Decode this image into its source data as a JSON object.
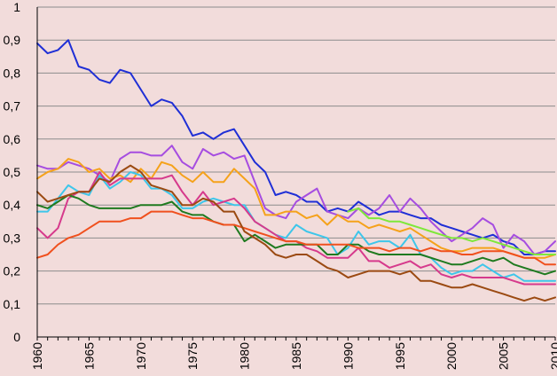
{
  "chart_data": {
    "type": "line",
    "title": "",
    "xlabel": "",
    "ylabel": "",
    "xlim": [
      1960,
      2010
    ],
    "ylim": [
      0,
      1
    ],
    "grid": true,
    "legend": "none",
    "background": "#f2dcdb",
    "x_ticks": [
      "1960",
      "1965",
      "1970",
      "1975",
      "1980",
      "1985",
      "1990",
      "1995",
      "2000",
      "2005",
      "2010"
    ],
    "y_ticks": [
      "0",
      "0,1",
      "0,2",
      "0,3",
      "0,4",
      "0,5",
      "0,6",
      "0,7",
      "0,8",
      "0,9",
      "1"
    ],
    "x": [
      1960,
      1961,
      1962,
      1963,
      1964,
      1965,
      1966,
      1967,
      1968,
      1969,
      1970,
      1971,
      1972,
      1973,
      1974,
      1975,
      1976,
      1977,
      1978,
      1979,
      1980,
      1981,
      1982,
      1983,
      1984,
      1985,
      1986,
      1987,
      1988,
      1989,
      1990,
      1991,
      1992,
      1993,
      1994,
      1995,
      1996,
      1997,
      1998,
      1999,
      2000,
      2001,
      2002,
      2003,
      2004,
      2005,
      2006,
      2007,
      2008,
      2009,
      2010
    ],
    "series": [
      {
        "color": "#1f2fd6",
        "values": [
          0.89,
          0.86,
          0.87,
          0.9,
          0.82,
          0.81,
          0.78,
          0.77,
          0.81,
          0.8,
          0.75,
          0.7,
          0.72,
          0.71,
          0.67,
          0.61,
          0.62,
          0.6,
          0.62,
          0.63,
          0.58,
          0.53,
          0.5,
          0.43,
          0.44,
          0.43,
          0.41,
          0.41,
          0.38,
          0.39,
          0.38,
          0.41,
          0.39,
          0.37,
          0.38,
          0.38,
          0.37,
          0.36,
          0.36,
          0.34,
          0.33,
          0.32,
          0.31,
          0.3,
          0.31,
          0.29,
          0.28,
          0.25,
          0.25,
          0.26,
          0.26
        ]
      },
      {
        "color": "#a64de0",
        "values": [
          0.52,
          0.51,
          0.51,
          0.53,
          0.52,
          0.51,
          0.49,
          0.47,
          0.54,
          0.56,
          0.56,
          0.55,
          0.55,
          0.58,
          0.53,
          0.51,
          0.57,
          0.55,
          0.56,
          0.54,
          0.55,
          0.47,
          0.39,
          0.37,
          0.36,
          0.41,
          0.43,
          0.45,
          0.38,
          0.37,
          0.36,
          0.39,
          0.37,
          0.39,
          0.43,
          0.38,
          0.42,
          0.39,
          0.35,
          0.32,
          0.29,
          0.31,
          0.33,
          0.36,
          0.34,
          0.27,
          0.31,
          0.29,
          0.25,
          0.26,
          0.29
        ]
      },
      {
        "color": "#f5a21b",
        "values": [
          0.48,
          0.5,
          0.51,
          0.54,
          0.53,
          0.5,
          0.51,
          0.48,
          0.49,
          0.47,
          0.51,
          0.48,
          0.53,
          0.52,
          0.49,
          0.47,
          0.5,
          0.47,
          0.47,
          0.51,
          0.48,
          0.45,
          0.37,
          0.37,
          0.38,
          0.38,
          0.36,
          0.37,
          0.34,
          0.37,
          0.35,
          0.35,
          0.33,
          0.34,
          0.33,
          0.32,
          0.33,
          0.31,
          0.29,
          0.27,
          0.26,
          0.26,
          0.27,
          0.27,
          0.27,
          0.26,
          0.25,
          0.24,
          0.24,
          0.24,
          0.25
        ]
      },
      {
        "color": "#3ec6ea",
        "values": [
          0.38,
          0.38,
          0.42,
          0.46,
          0.44,
          0.43,
          0.49,
          0.45,
          0.47,
          0.5,
          0.49,
          0.45,
          0.45,
          0.43,
          0.39,
          0.39,
          0.41,
          0.42,
          0.41,
          0.4,
          0.4,
          0.35,
          0.33,
          0.31,
          0.3,
          0.34,
          0.32,
          0.31,
          0.3,
          0.25,
          0.27,
          0.32,
          0.28,
          0.29,
          0.29,
          0.27,
          0.31,
          0.25,
          0.24,
          0.21,
          0.19,
          0.2,
          0.2,
          0.22,
          0.2,
          0.18,
          0.19,
          0.17,
          0.17,
          0.17,
          0.17
        ]
      },
      {
        "color": "#d63a8c",
        "values": [
          0.33,
          0.3,
          0.33,
          0.42,
          0.44,
          0.44,
          0.5,
          0.46,
          0.48,
          0.48,
          0.48,
          0.48,
          0.48,
          0.49,
          0.44,
          0.4,
          0.44,
          0.4,
          0.41,
          0.42,
          0.39,
          0.35,
          0.33,
          0.31,
          0.29,
          0.29,
          0.27,
          0.26,
          0.24,
          0.24,
          0.24,
          0.27,
          0.23,
          0.23,
          0.21,
          0.22,
          0.23,
          0.21,
          0.22,
          0.19,
          0.18,
          0.19,
          0.18,
          0.18,
          0.18,
          0.18,
          0.17,
          0.16,
          0.16,
          0.16,
          0.16
        ]
      },
      {
        "color": "#7ee83a",
        "values": [
          null,
          null,
          null,
          null,
          null,
          null,
          null,
          null,
          null,
          null,
          null,
          null,
          null,
          null,
          null,
          null,
          null,
          null,
          null,
          null,
          null,
          null,
          null,
          null,
          null,
          null,
          null,
          null,
          null,
          null,
          0.38,
          0.39,
          0.36,
          0.36,
          0.35,
          0.35,
          0.34,
          0.33,
          0.32,
          0.31,
          0.3,
          0.3,
          0.29,
          0.3,
          0.29,
          0.28,
          0.27,
          0.26,
          0.25,
          0.25,
          0.25
        ]
      },
      {
        "color": "#1f7a1f",
        "values": [
          0.4,
          0.39,
          0.41,
          0.43,
          0.42,
          0.4,
          0.39,
          0.39,
          0.39,
          0.39,
          0.4,
          0.4,
          0.4,
          0.41,
          0.38,
          0.37,
          0.37,
          0.35,
          0.34,
          0.34,
          0.29,
          0.31,
          0.29,
          0.27,
          0.28,
          0.28,
          0.28,
          0.28,
          0.25,
          0.25,
          0.28,
          0.28,
          0.26,
          0.25,
          0.25,
          0.25,
          0.25,
          0.25,
          0.24,
          0.23,
          0.22,
          0.22,
          0.23,
          0.24,
          0.23,
          0.24,
          0.22,
          0.21,
          0.2,
          0.19,
          0.2
        ]
      },
      {
        "color": "#f0501e",
        "values": [
          0.24,
          0.25,
          0.28,
          0.3,
          0.31,
          0.33,
          0.35,
          0.35,
          0.35,
          0.36,
          0.36,
          0.38,
          0.38,
          0.38,
          0.37,
          0.36,
          0.36,
          0.35,
          0.34,
          0.34,
          0.33,
          0.32,
          0.31,
          0.3,
          0.29,
          0.29,
          0.28,
          0.28,
          0.28,
          0.28,
          0.28,
          0.27,
          0.27,
          0.27,
          0.26,
          0.27,
          0.27,
          0.26,
          0.27,
          0.26,
          0.26,
          0.25,
          0.25,
          0.26,
          0.26,
          0.26,
          0.25,
          0.24,
          0.24,
          0.22,
          0.22
        ]
      },
      {
        "color": "#9b4a12",
        "values": [
          0.44,
          0.41,
          0.42,
          0.43,
          0.44,
          0.44,
          0.48,
          0.47,
          0.5,
          0.52,
          0.5,
          0.46,
          0.45,
          0.44,
          0.4,
          0.4,
          0.42,
          0.41,
          0.38,
          0.38,
          0.32,
          0.3,
          0.28,
          0.25,
          0.24,
          0.25,
          0.25,
          0.23,
          0.21,
          0.2,
          0.18,
          0.19,
          0.2,
          0.2,
          0.2,
          0.19,
          0.2,
          0.17,
          0.17,
          0.16,
          0.15,
          0.15,
          0.16,
          0.15,
          0.14,
          0.13,
          0.12,
          0.11,
          0.12,
          0.11,
          0.12
        ]
      }
    ]
  }
}
